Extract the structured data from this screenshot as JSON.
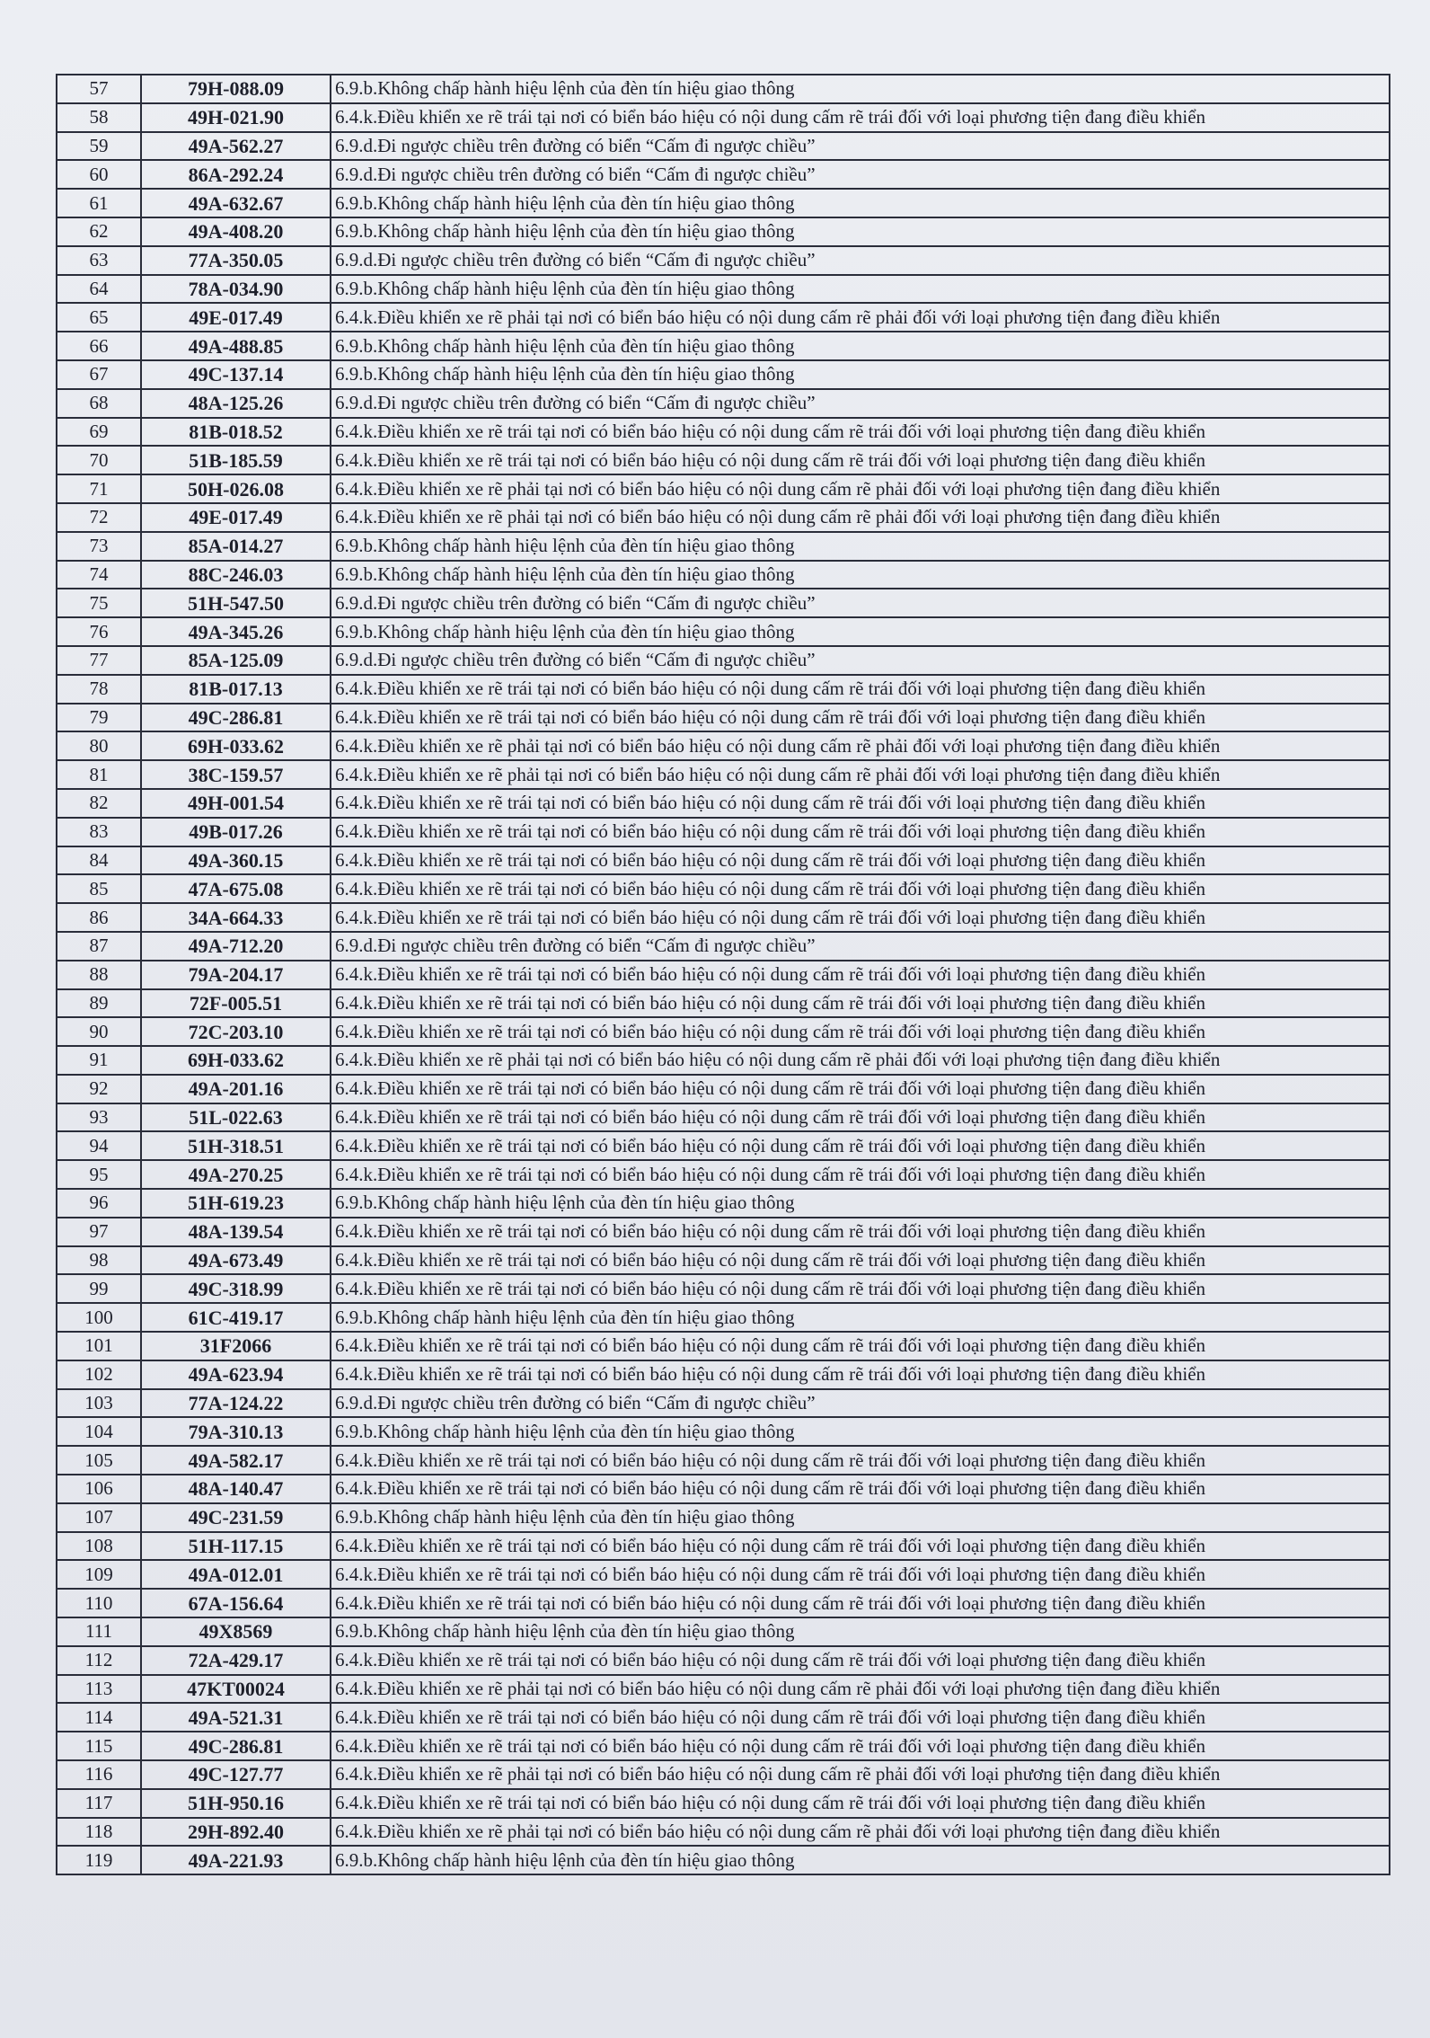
{
  "violations": {
    "A": "6.9.b.Không chấp hành hiệu lệnh của đèn tín hiệu giao thông",
    "B": "6.4.k.Điều khiển xe rẽ trái tại nơi có biển báo hiệu có nội dung cấm rẽ trái đối với loại phương tiện đang điều khiển",
    "C": "6.4.k.Điều khiển xe rẽ phải tại nơi có biển báo hiệu có nội dung cấm rẽ phải đối với loại phương tiện đang điều khiển",
    "D": "6.9.d.Đi ngược chiều trên đường có biển “Cấm đi ngược chiều”"
  },
  "rows": [
    {
      "no": "57",
      "plate": "79H-088.09",
      "violation": "6.9.b.Không chấp hành hiệu lệnh của đèn tín hiệu giao thông"
    },
    {
      "no": "58",
      "plate": "49H-021.90",
      "violation": "6.4.k.Điều khiển xe rẽ trái tại nơi có biển báo hiệu có nội dung cấm rẽ trái đối với loại phương tiện đang điều khiển"
    },
    {
      "no": "59",
      "plate": "49A-562.27",
      "violation": "6.9.d.Đi ngược chiều trên đường có biển “Cấm đi ngược chiều”"
    },
    {
      "no": "60",
      "plate": "86A-292.24",
      "violation": "6.9.d.Đi ngược chiều trên đường có biển “Cấm đi ngược chiều”"
    },
    {
      "no": "61",
      "plate": "49A-632.67",
      "violation": "6.9.b.Không chấp hành hiệu lệnh của đèn tín hiệu giao thông"
    },
    {
      "no": "62",
      "plate": "49A-408.20",
      "violation": "6.9.b.Không chấp hành hiệu lệnh của đèn tín hiệu giao thông"
    },
    {
      "no": "63",
      "plate": "77A-350.05",
      "violation": "6.9.d.Đi ngược chiều trên đường có biển “Cấm đi ngược chiều”"
    },
    {
      "no": "64",
      "plate": "78A-034.90",
      "violation": "6.9.b.Không chấp hành hiệu lệnh của đèn tín hiệu giao thông"
    },
    {
      "no": "65",
      "plate": "49E-017.49",
      "violation": "6.4.k.Điều khiển xe rẽ phải tại nơi có biển báo hiệu có nội dung cấm rẽ phải đối với loại phương tiện đang điều khiển"
    },
    {
      "no": "66",
      "plate": "49A-488.85",
      "violation": "6.9.b.Không chấp hành hiệu lệnh của đèn tín hiệu giao thông"
    },
    {
      "no": "67",
      "plate": "49C-137.14",
      "violation": "6.9.b.Không chấp hành hiệu lệnh của đèn tín hiệu giao thông"
    },
    {
      "no": "68",
      "plate": "48A-125.26",
      "violation": "6.9.d.Đi ngược chiều trên đường có biển “Cấm đi ngược chiều”"
    },
    {
      "no": "69",
      "plate": "81B-018.52",
      "violation": "6.4.k.Điều khiển xe rẽ trái tại nơi có biển báo hiệu có nội dung cấm rẽ trái đối với loại phương tiện đang điều khiển"
    },
    {
      "no": "70",
      "plate": "51B-185.59",
      "violation": "6.4.k.Điều khiển xe rẽ trái tại nơi có biển báo hiệu có nội dung cấm rẽ trái đối với loại phương tiện đang điều khiển"
    },
    {
      "no": "71",
      "plate": "50H-026.08",
      "violation": "6.4.k.Điều khiển xe rẽ phải tại nơi có biển báo hiệu có nội dung cấm rẽ phải đối với loại phương tiện đang điều khiển"
    },
    {
      "no": "72",
      "plate": "49E-017.49",
      "violation": "6.4.k.Điều khiển xe rẽ phải tại nơi có biển báo hiệu có nội dung cấm rẽ phải đối với loại phương tiện đang điều khiển"
    },
    {
      "no": "73",
      "plate": "85A-014.27",
      "violation": "6.9.b.Không chấp hành hiệu lệnh của đèn tín hiệu giao thông"
    },
    {
      "no": "74",
      "plate": "88C-246.03",
      "violation": "6.9.b.Không chấp hành hiệu lệnh của đèn tín hiệu giao thông"
    },
    {
      "no": "75",
      "plate": "51H-547.50",
      "violation": "6.9.d.Đi ngược chiều trên đường có biển “Cấm đi ngược chiều”"
    },
    {
      "no": "76",
      "plate": "49A-345.26",
      "violation": "6.9.b.Không chấp hành hiệu lệnh của đèn tín hiệu giao thông"
    },
    {
      "no": "77",
      "plate": "85A-125.09",
      "violation": "6.9.d.Đi ngược chiều trên đường có biển “Cấm đi ngược chiều”"
    },
    {
      "no": "78",
      "plate": "81B-017.13",
      "violation": "6.4.k.Điều khiển xe rẽ trái tại nơi có biển báo hiệu có nội dung cấm rẽ trái đối với loại phương tiện đang điều khiển"
    },
    {
      "no": "79",
      "plate": "49C-286.81",
      "violation": "6.4.k.Điều khiển xe rẽ trái tại nơi có biển báo hiệu có nội dung cấm rẽ trái đối với loại phương tiện đang điều khiển"
    },
    {
      "no": "80",
      "plate": "69H-033.62",
      "violation": "6.4.k.Điều khiển xe rẽ phải tại nơi có biển báo hiệu có nội dung cấm rẽ phải đối với loại phương tiện đang điều khiển"
    },
    {
      "no": "81",
      "plate": "38C-159.57",
      "violation": "6.4.k.Điều khiển xe rẽ phải tại nơi có biển báo hiệu có nội dung cấm rẽ phải đối với loại phương tiện đang điều khiển"
    },
    {
      "no": "82",
      "plate": "49H-001.54",
      "violation": "6.4.k.Điều khiển xe rẽ trái tại nơi có biển báo hiệu có nội dung cấm rẽ trái đối với loại phương tiện đang điều khiển"
    },
    {
      "no": "83",
      "plate": "49B-017.26",
      "violation": "6.4.k.Điều khiển xe rẽ trái tại nơi có biển báo hiệu có nội dung cấm rẽ trái đối với loại phương tiện đang điều khiển"
    },
    {
      "no": "84",
      "plate": "49A-360.15",
      "violation": "6.4.k.Điều khiển xe rẽ trái tại nơi có biển báo hiệu có nội dung cấm rẽ trái đối với loại phương tiện đang điều khiển"
    },
    {
      "no": "85",
      "plate": "47A-675.08",
      "violation": "6.4.k.Điều khiển xe rẽ trái tại nơi có biển báo hiệu có nội dung cấm rẽ trái đối với loại phương tiện đang điều khiển"
    },
    {
      "no": "86",
      "plate": "34A-664.33",
      "violation": "6.4.k.Điều khiển xe rẽ trái tại nơi có biển báo hiệu có nội dung cấm rẽ trái đối với loại phương tiện đang điều khiển"
    },
    {
      "no": "87",
      "plate": "49A-712.20",
      "violation": "6.9.d.Đi ngược chiều trên đường có biển “Cấm đi ngược chiều”"
    },
    {
      "no": "88",
      "plate": "79A-204.17",
      "violation": "6.4.k.Điều khiển xe rẽ trái tại nơi có biển báo hiệu có nội dung cấm rẽ trái đối với loại phương tiện đang điều khiển"
    },
    {
      "no": "89",
      "plate": "72F-005.51",
      "violation": "6.4.k.Điều khiển xe rẽ trái tại nơi có biển báo hiệu có nội dung cấm rẽ trái đối với loại phương tiện đang điều khiển"
    },
    {
      "no": "90",
      "plate": "72C-203.10",
      "violation": "6.4.k.Điều khiển xe rẽ trái tại nơi có biển báo hiệu có nội dung cấm rẽ trái đối với loại phương tiện đang điều khiển"
    },
    {
      "no": "91",
      "plate": "69H-033.62",
      "violation": "6.4.k.Điều khiển xe rẽ phải tại nơi có biển báo hiệu có nội dung cấm rẽ phải đối với loại phương tiện đang điều khiển"
    },
    {
      "no": "92",
      "plate": "49A-201.16",
      "violation": "6.4.k.Điều khiển xe rẽ trái tại nơi có biển báo hiệu có nội dung cấm rẽ trái đối với loại phương tiện đang điều khiển"
    },
    {
      "no": "93",
      "plate": "51L-022.63",
      "violation": "6.4.k.Điều khiển xe rẽ trái tại nơi có biển báo hiệu có nội dung cấm rẽ trái đối với loại phương tiện đang điều khiển"
    },
    {
      "no": "94",
      "plate": "51H-318.51",
      "violation": "6.4.k.Điều khiển xe rẽ trái tại nơi có biển báo hiệu có nội dung cấm rẽ trái đối với loại phương tiện đang điều khiển"
    },
    {
      "no": "95",
      "plate": "49A-270.25",
      "violation": "6.4.k.Điều khiển xe rẽ trái tại nơi có biển báo hiệu có nội dung cấm rẽ trái đối với loại phương tiện đang điều khiển"
    },
    {
      "no": "96",
      "plate": "51H-619.23",
      "violation": "6.9.b.Không chấp hành hiệu lệnh của đèn tín hiệu giao thông"
    },
    {
      "no": "97",
      "plate": "48A-139.54",
      "violation": "6.4.k.Điều khiển xe rẽ trái tại nơi có biển báo hiệu có nội dung cấm rẽ trái đối với loại phương tiện đang điều khiển"
    },
    {
      "no": "98",
      "plate": "49A-673.49",
      "violation": "6.4.k.Điều khiển xe rẽ trái tại nơi có biển báo hiệu có nội dung cấm rẽ trái đối với loại phương tiện đang điều khiển"
    },
    {
      "no": "99",
      "plate": "49C-318.99",
      "violation": "6.4.k.Điều khiển xe rẽ trái tại nơi có biển báo hiệu có nội dung cấm rẽ trái đối với loại phương tiện đang điều khiển"
    },
    {
      "no": "100",
      "plate": "61C-419.17",
      "violation": "6.9.b.Không chấp hành hiệu lệnh của đèn tín hiệu giao thông"
    },
    {
      "no": "101",
      "plate": "31F2066",
      "violation": "6.4.k.Điều khiển xe rẽ trái tại nơi có biển báo hiệu có nội dung cấm rẽ trái đối với loại phương tiện đang điều khiển"
    },
    {
      "no": "102",
      "plate": "49A-623.94",
      "violation": "6.4.k.Điều khiển xe rẽ trái tại nơi có biển báo hiệu có nội dung cấm rẽ trái đối với loại phương tiện đang điều khiển"
    },
    {
      "no": "103",
      "plate": "77A-124.22",
      "violation": "6.9.d.Đi ngược chiều trên đường có biển “Cấm đi ngược chiều”"
    },
    {
      "no": "104",
      "plate": "79A-310.13",
      "violation": "6.9.b.Không chấp hành hiệu lệnh của đèn tín hiệu giao thông"
    },
    {
      "no": "105",
      "plate": "49A-582.17",
      "violation": "6.4.k.Điều khiển xe rẽ trái tại nơi có biển báo hiệu có nội dung cấm rẽ trái đối với loại phương tiện đang điều khiển"
    },
    {
      "no": "106",
      "plate": "48A-140.47",
      "violation": "6.4.k.Điều khiển xe rẽ trái tại nơi có biển báo hiệu có nội dung cấm rẽ trái đối với loại phương tiện đang điều khiển"
    },
    {
      "no": "107",
      "plate": "49C-231.59",
      "violation": "6.9.b.Không chấp hành hiệu lệnh của đèn tín hiệu giao thông"
    },
    {
      "no": "108",
      "plate": "51H-117.15",
      "violation": "6.4.k.Điều khiển xe rẽ trái tại nơi có biển báo hiệu có nội dung cấm rẽ trái đối với loại phương tiện đang điều khiển"
    },
    {
      "no": "109",
      "plate": "49A-012.01",
      "violation": "6.4.k.Điều khiển xe rẽ trái tại nơi có biển báo hiệu có nội dung cấm rẽ trái đối với loại phương tiện đang điều khiển"
    },
    {
      "no": "110",
      "plate": "67A-156.64",
      "violation": "6.4.k.Điều khiển xe rẽ trái tại nơi có biển báo hiệu có nội dung cấm rẽ trái đối với loại phương tiện đang điều khiển"
    },
    {
      "no": "111",
      "plate": "49X8569",
      "violation": "6.9.b.Không chấp hành hiệu lệnh của đèn tín hiệu giao thông"
    },
    {
      "no": "112",
      "plate": "72A-429.17",
      "violation": "6.4.k.Điều khiển xe rẽ trái tại nơi có biển báo hiệu có nội dung cấm rẽ trái đối với loại phương tiện đang điều khiển"
    },
    {
      "no": "113",
      "plate": "47KT00024",
      "violation": "6.4.k.Điều khiển xe rẽ phải tại nơi có biển báo hiệu có nội dung cấm rẽ phải đối với loại phương tiện đang điều khiển"
    },
    {
      "no": "114",
      "plate": "49A-521.31",
      "violation": "6.4.k.Điều khiển xe rẽ trái tại nơi có biển báo hiệu có nội dung cấm rẽ trái đối với loại phương tiện đang điều khiển"
    },
    {
      "no": "115",
      "plate": "49C-286.81",
      "violation": "6.4.k.Điều khiển xe rẽ trái tại nơi có biển báo hiệu có nội dung cấm rẽ trái đối với loại phương tiện đang điều khiển"
    },
    {
      "no": "116",
      "plate": "49C-127.77",
      "violation": "6.4.k.Điều khiển xe rẽ phải tại nơi có biển báo hiệu có nội dung cấm rẽ phải đối với loại phương tiện đang điều khiển"
    },
    {
      "no": "117",
      "plate": "51H-950.16",
      "violation": "6.4.k.Điều khiển xe rẽ trái tại nơi có biển báo hiệu có nội dung cấm rẽ trái đối với loại phương tiện đang điều khiển"
    },
    {
      "no": "118",
      "plate": "29H-892.40",
      "violation": "6.4.k.Điều khiển xe rẽ phải tại nơi có biển báo hiệu có nội dung cấm rẽ phải đối với loại phương tiện đang điều khiển"
    },
    {
      "no": "119",
      "plate": "49A-221.93",
      "violation": "6.9.b.Không chấp hành hiệu lệnh của đèn tín hiệu giao thông"
    }
  ]
}
